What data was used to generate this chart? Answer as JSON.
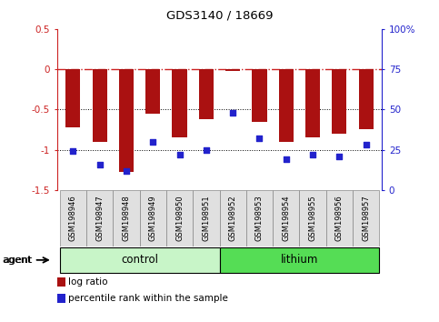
{
  "title": "GDS3140 / 18669",
  "samples": [
    "GSM198946",
    "GSM198947",
    "GSM198948",
    "GSM198949",
    "GSM198950",
    "GSM198951",
    "GSM198952",
    "GSM198953",
    "GSM198954",
    "GSM198955",
    "GSM198956",
    "GSM198957"
  ],
  "log_ratio": [
    -0.72,
    -0.9,
    -1.27,
    -0.55,
    -0.85,
    -0.62,
    -0.02,
    -0.65,
    -0.9,
    -0.85,
    -0.8,
    -0.75
  ],
  "percentile_rank": [
    24,
    16,
    12,
    30,
    22,
    25,
    48,
    32,
    19,
    22,
    21,
    28
  ],
  "groups": [
    {
      "label": "control",
      "start": 0,
      "end": 6,
      "color": "#c8f5c8"
    },
    {
      "label": "lithium",
      "start": 6,
      "end": 12,
      "color": "#55dd55"
    }
  ],
  "ylim_left": [
    -1.5,
    0.5
  ],
  "ylim_right": [
    0,
    100
  ],
  "bar_color": "#aa1111",
  "dot_color": "#2222cc",
  "hline_0_color": "#cc2222",
  "hline_0_style": "-.",
  "hline_m05_color": "black",
  "hline_m05_style": ":",
  "hline_m1_color": "black",
  "hline_m1_style": ":",
  "right_ticks": [
    0,
    25,
    50,
    75,
    100
  ],
  "right_tick_labels": [
    "0",
    "25",
    "50",
    "75",
    "100%"
  ],
  "left_ticks": [
    -1.5,
    -1.0,
    -0.5,
    0.0,
    0.5
  ],
  "left_tick_labels": [
    "-1.5",
    "-1",
    "-0.5",
    "0",
    "0.5"
  ],
  "agent_label": "agent",
  "legend_bar_label": "log ratio",
  "legend_dot_label": "percentile rank within the sample",
  "bar_width": 0.55,
  "figsize": [
    4.83,
    3.54
  ],
  "dpi": 100
}
